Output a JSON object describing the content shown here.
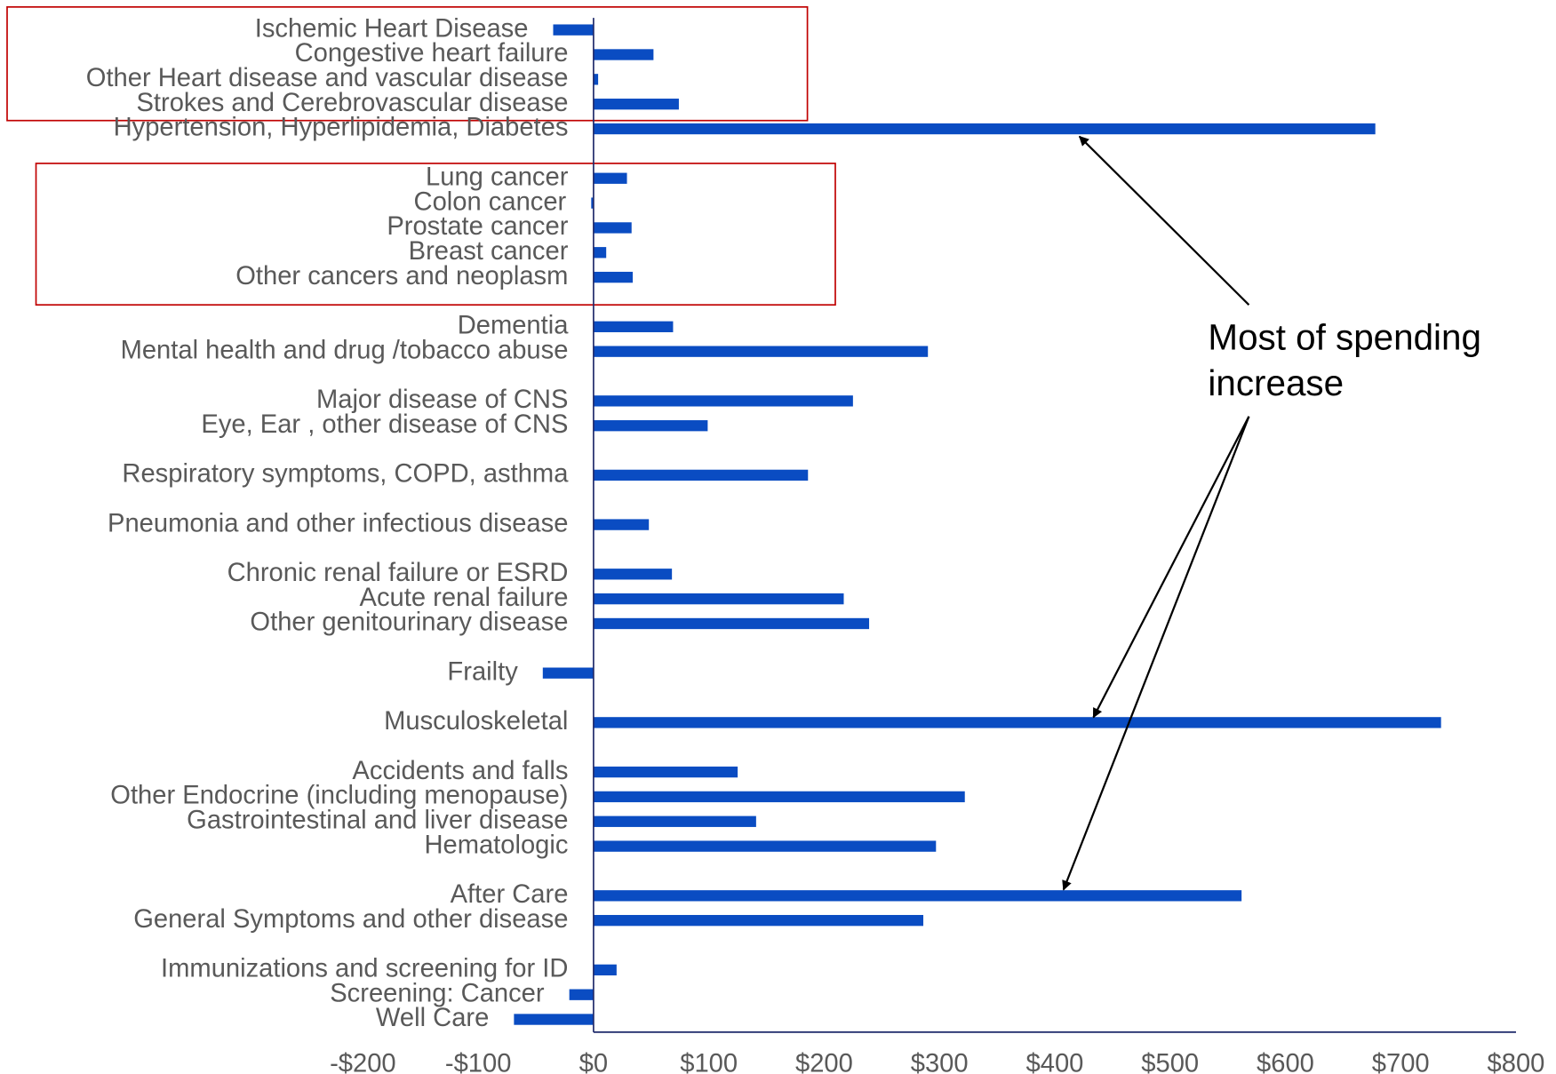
{
  "chart_data": {
    "type": "bar",
    "orientation": "horizontal",
    "categories": [
      "Ischemic Heart Disease",
      "Congestive heart failure",
      "Other Heart disease and vascular disease",
      "Strokes and Cerebrovascular disease",
      "Hypertension, Hyperlipidemia, Diabetes",
      null,
      "Lung cancer",
      "Colon cancer",
      "Prostate cancer",
      "Breast cancer",
      "Other cancers and neoplasm",
      null,
      "Dementia",
      "Mental health and drug /tobacco abuse",
      null,
      "Major disease of CNS",
      "Eye, Ear , other disease of CNS",
      null,
      "Respiratory symptoms, COPD, asthma",
      null,
      "Pneumonia and other infectious disease",
      null,
      "Chronic renal failure or ESRD",
      "Acute renal failure",
      "Other  genitourinary disease",
      null,
      "Frailty",
      null,
      "Musculoskeletal",
      null,
      "Accidents  and falls",
      "Other Endocrine (including menopause)",
      "Gastrointestinal and liver disease",
      "Hematologic",
      null,
      "After Care",
      "General Symptoms and other disease",
      null,
      "Immunizations and screening for ID",
      "Screening: Cancer",
      "Well Care"
    ],
    "values": [
      -35,
      52,
      4,
      74,
      678,
      null,
      29,
      -2,
      33,
      11,
      34,
      null,
      69,
      290,
      null,
      225,
      99,
      null,
      186,
      null,
      48,
      null,
      68,
      217,
      239,
      null,
      -44,
      null,
      735,
      null,
      125,
      322,
      141,
      297,
      null,
      562,
      286,
      null,
      20,
      -21,
      -69
    ],
    "color": "#0a4cc2",
    "xlim": [
      -200,
      800
    ],
    "xticks": [
      {
        "value": -200,
        "label": "-$200"
      },
      {
        "value": -100,
        "label": "-$100"
      },
      {
        "value": 0,
        "label": "$0"
      },
      {
        "value": 100,
        "label": "$100"
      },
      {
        "value": 200,
        "label": "$200"
      },
      {
        "value": 300,
        "label": "$300"
      },
      {
        "value": 400,
        "label": "$400"
      },
      {
        "value": 500,
        "label": "$500"
      },
      {
        "value": 600,
        "label": "$600"
      },
      {
        "value": 700,
        "label": "$700"
      },
      {
        "value": 800,
        "label": "$800"
      }
    ],
    "grid": false,
    "annotation": "Most of spending increase"
  }
}
